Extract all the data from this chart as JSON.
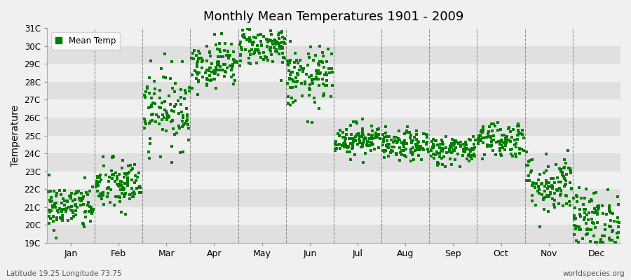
{
  "title": "Monthly Mean Temperatures 1901 - 2009",
  "ylabel": "Temperature",
  "xlabel": "",
  "ylim": [
    19,
    31
  ],
  "yticks": [
    19,
    20,
    21,
    22,
    23,
    24,
    25,
    26,
    27,
    28,
    29,
    30,
    31
  ],
  "ytick_labels": [
    "19C",
    "20C",
    "21C",
    "22C",
    "23C",
    "24C",
    "25C",
    "26C",
    "27C",
    "28C",
    "29C",
    "30C",
    "31C"
  ],
  "month_names": [
    "Jan",
    "Feb",
    "Mar",
    "Apr",
    "May",
    "Jun",
    "Jul",
    "Aug",
    "Sep",
    "Oct",
    "Nov",
    "Dec"
  ],
  "month_means": [
    21.0,
    22.2,
    26.5,
    29.0,
    30.0,
    28.2,
    24.8,
    24.4,
    24.2,
    24.8,
    22.3,
    20.3
  ],
  "month_stds": [
    0.65,
    0.75,
    1.1,
    0.65,
    0.55,
    0.85,
    0.45,
    0.42,
    0.42,
    0.52,
    0.85,
    0.85
  ],
  "n_years": 109,
  "marker_color": "#008000",
  "marker": "s",
  "marker_size": 2.5,
  "fig_bg_color": "#f0f0f0",
  "plot_bg_color": "#f5f5f5",
  "band_color_light": "#f0f0f0",
  "band_color_dark": "#e0e0e0",
  "grid_color": "#777777",
  "legend_label": "Mean Temp",
  "footnote_left": "Latitude 19.25 Longitude 73.75",
  "footnote_right": "worldspecies.org",
  "seed": 42
}
